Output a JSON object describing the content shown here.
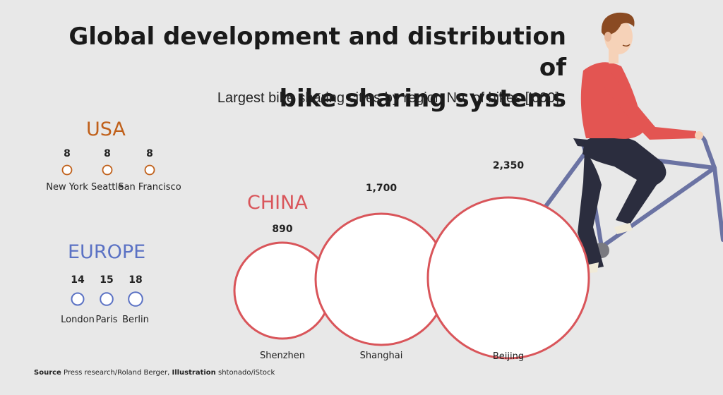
{
  "title_line1": "Global development and distribution of",
  "title_line2": "bike sharing systems",
  "subtitle": "Largest bike sharing cities by region No. of bikes ['000]",
  "source_label": "Source",
  "source_text": "Press research/Roland Berger,",
  "illustration_label": "Illustration",
  "illustration_text": "shtonado/iStock",
  "colors": {
    "usa": "#c0601a",
    "europe": "#5b72c4",
    "china": "#d9555a"
  },
  "chart_data": {
    "type": "bubble",
    "unit": "No. of bikes ['000]",
    "regions": [
      {
        "name": "USA",
        "cities": [
          {
            "city": "New York",
            "value": 8,
            "label": "8"
          },
          {
            "city": "Seattle",
            "value": 8,
            "label": "8"
          },
          {
            "city": "San Francisco",
            "value": 8,
            "label": "8"
          }
        ]
      },
      {
        "name": "EUROPE",
        "cities": [
          {
            "city": "London",
            "value": 14,
            "label": "14"
          },
          {
            "city": "Paris",
            "value": 15,
            "label": "15"
          },
          {
            "city": "Berlin",
            "value": 18,
            "label": "18"
          }
        ]
      },
      {
        "name": "CHINA",
        "cities": [
          {
            "city": "Shenzhen",
            "value": 890,
            "label": "890"
          },
          {
            "city": "Shanghai",
            "value": 1700,
            "label": "1,700"
          },
          {
            "city": "Beijing",
            "value": 2350,
            "label": "2,350"
          }
        ]
      }
    ]
  }
}
